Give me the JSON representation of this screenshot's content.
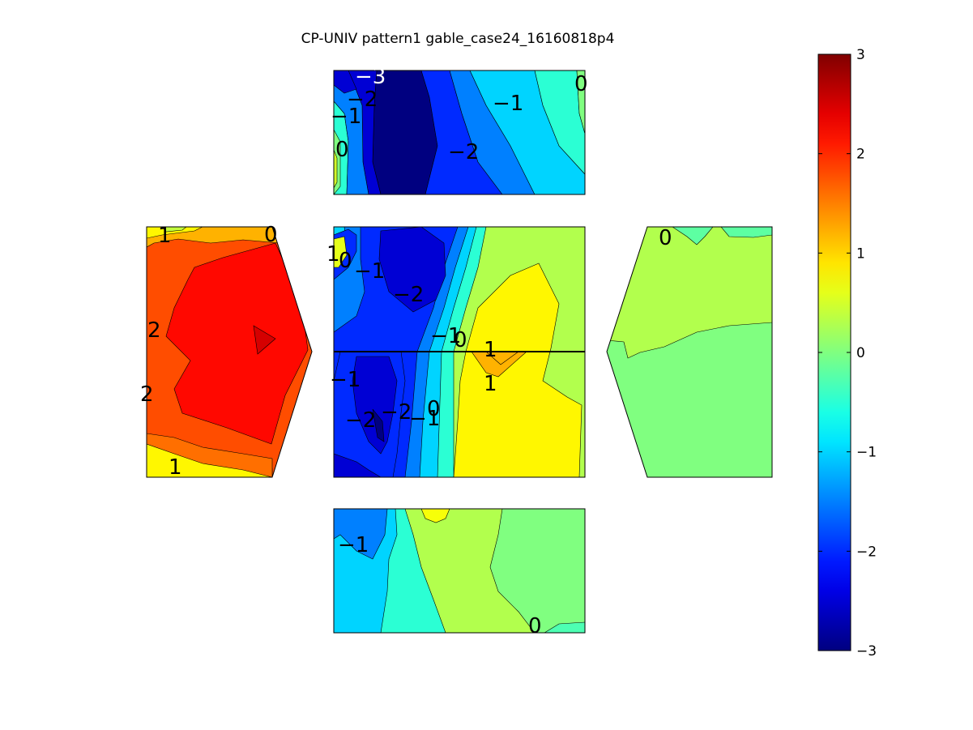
{
  "chart_data": {
    "type": "heatmap",
    "title": "CP-UNIV pattern1 gable_case24_16160818p4",
    "colormap": "jet",
    "colorbar": {
      "clim": [
        -3,
        3
      ],
      "ticks": [
        -3,
        -2,
        -1,
        0,
        1,
        2,
        3
      ],
      "tick_labels": [
        "−3",
        "−2",
        "−1",
        "0",
        "1",
        "2",
        "3"
      ]
    },
    "contour_levels": [
      -3,
      -2.5,
      -2,
      -1.5,
      -1,
      -0.5,
      0,
      0.5,
      1,
      1.5,
      2,
      2.5,
      3
    ],
    "panels": [
      {
        "name": "top",
        "base_value": -2.2,
        "contour_labels": [
          "−3",
          "−2",
          "−1",
          "0",
          "−1",
          "−2",
          "0"
        ],
        "regions": [
          -3,
          -2.5,
          -2,
          -1.5,
          -1,
          -0.5,
          0,
          0.5,
          -1.5,
          -2.5
        ]
      },
      {
        "name": "left",
        "base_value": 1.8,
        "contour_labels": [
          "1",
          "0",
          "2",
          "2",
          "1"
        ],
        "regions": [
          2.2,
          2.5,
          1.2,
          0.8,
          0.4,
          1.6,
          0.2
        ]
      },
      {
        "name": "center",
        "base_value": 0.3,
        "contour_labels": [
          "1",
          "0",
          "−1",
          "−2",
          "−1",
          "0",
          "1",
          "1",
          "−1",
          "−2",
          "−2",
          "−1",
          "0"
        ],
        "regions": [
          -2.5,
          -2,
          -1.5,
          -1,
          -0.5,
          0.8,
          1.2,
          -3,
          -2.5,
          -2,
          0.6
        ]
      },
      {
        "name": "right",
        "base_value": 0,
        "contour_labels": [
          "0"
        ],
        "regions": [
          0.3,
          -0.2
        ]
      },
      {
        "name": "bottom",
        "base_value": 0.3,
        "contour_labels": [
          "−1",
          "0"
        ],
        "regions": [
          -1.5,
          -1,
          -0.5,
          0.7,
          0,
          -0.3
        ]
      }
    ]
  }
}
